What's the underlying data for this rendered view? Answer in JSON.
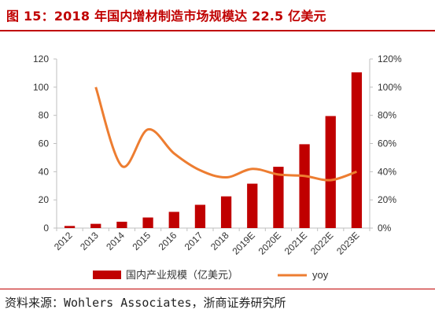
{
  "header": {
    "title": "图 15：2018 年国内增材制造市场规模达 22.5 亿美元"
  },
  "chart_data": {
    "type": "bar",
    "categories": [
      "2012",
      "2013",
      "2014",
      "2015",
      "2016",
      "2017",
      "2018",
      "2019E",
      "2020E",
      "2021E",
      "2022E",
      "2023E"
    ],
    "series": [
      {
        "name": "国内产业规模（亿美元）",
        "type": "bar",
        "axis": "left",
        "color": "#C00000",
        "values": [
          1.5,
          3,
          4.5,
          7.5,
          11.5,
          16.5,
          22.5,
          31.5,
          43.5,
          59.5,
          79.5,
          110.5
        ]
      },
      {
        "name": "yoy",
        "type": "line",
        "axis": "right",
        "color": "#ED7D31",
        "values": [
          null,
          1.0,
          0.44,
          0.7,
          0.53,
          0.41,
          0.36,
          0.42,
          0.38,
          0.37,
          0.34,
          0.4
        ]
      }
    ],
    "y_left": {
      "ylim": [
        0,
        120
      ],
      "ticks": [
        0,
        20,
        40,
        60,
        80,
        100,
        120
      ],
      "tick_labels": [
        "0",
        "20",
        "40",
        "60",
        "80",
        "100",
        "120"
      ]
    },
    "y_right": {
      "ylim": [
        0,
        1.2
      ],
      "ticks": [
        0,
        0.2,
        0.4,
        0.6,
        0.8,
        1.0,
        1.2
      ],
      "tick_labels": [
        "0%",
        "20%",
        "40%",
        "60%",
        "80%",
        "100%",
        "120%"
      ]
    },
    "legend": {
      "position": "bottom",
      "entries": [
        "国内产业规模（亿美元）",
        "yoy"
      ]
    },
    "grid": false
  },
  "source": {
    "text": "资料来源：Wohlers Associates，浙商证券研究所"
  }
}
